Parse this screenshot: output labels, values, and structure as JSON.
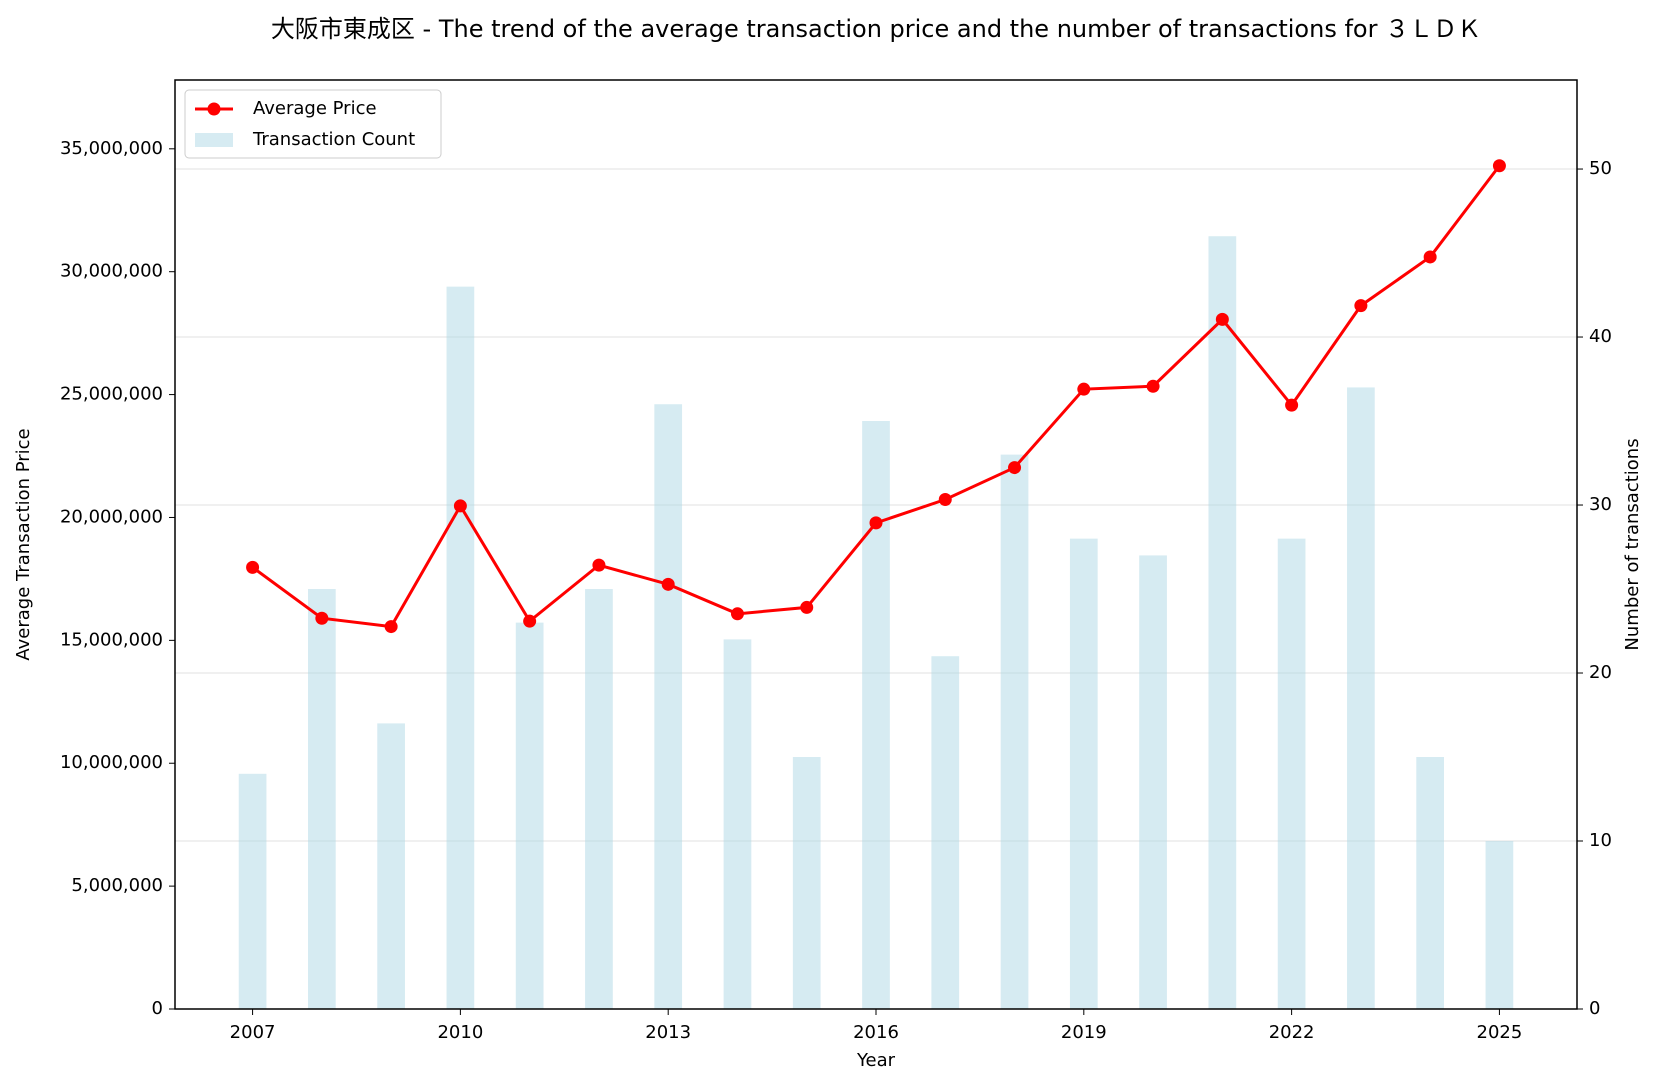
{
  "chart_data": {
    "type": "combo",
    "title": "大阪市東成区 - The trend of the average transaction price and the number of transactions for ３ＬＤＫ",
    "xlabel": "Year",
    "ylabel": "Average Transaction Price",
    "y2label": "Number of transactions",
    "x": [
      2007,
      2008,
      2009,
      2010,
      2011,
      2012,
      2013,
      2014,
      2015,
      2016,
      2017,
      2018,
      2019,
      2020,
      2021,
      2022,
      2023,
      2024,
      2025
    ],
    "series": [
      {
        "name": "Transaction Count",
        "type": "bar",
        "axis": "y2",
        "color": "#add8e6",
        "values": [
          14,
          25,
          17,
          43,
          23,
          25,
          36,
          22,
          15,
          35,
          21,
          33,
          28,
          27,
          46,
          28,
          37,
          15,
          10
        ]
      },
      {
        "name": "Average Price",
        "type": "line",
        "color": "#ff0000",
        "values": [
          17970000,
          15900000,
          15560000,
          20470000,
          15780000,
          18060000,
          17280000,
          16080000,
          16340000,
          19780000,
          20730000,
          22030000,
          25220000,
          25340000,
          28060000,
          24570000,
          28620000,
          30600000,
          34310000
        ]
      }
    ],
    "xlim": [
      2005.88,
      2026.12
    ],
    "xticks": [
      2007,
      2010,
      2013,
      2016,
      2019,
      2022,
      2025
    ],
    "ylim": [
      0,
      37800000
    ],
    "yticks": [
      0,
      {
        "value": 5000000,
        "label": "5,000,000"
      },
      {
        "value": 10000000,
        "label": "10,000,000"
      },
      {
        "value": 15000000,
        "label": "15,000,000"
      },
      {
        "value": 20000000,
        "label": "20,000,000"
      },
      {
        "value": 25000000,
        "label": "25,000,000"
      },
      {
        "value": 30000000,
        "label": "30,000,000"
      },
      {
        "value": 35000000,
        "label": "35,000,000"
      }
    ],
    "y2lim": [
      0,
      55.3
    ],
    "y2ticks": [
      0,
      10,
      20,
      30,
      40,
      50
    ],
    "y_color": "#8b0000",
    "y2_color": "#00008b",
    "grid": "y2",
    "legend": "upper-left"
  }
}
